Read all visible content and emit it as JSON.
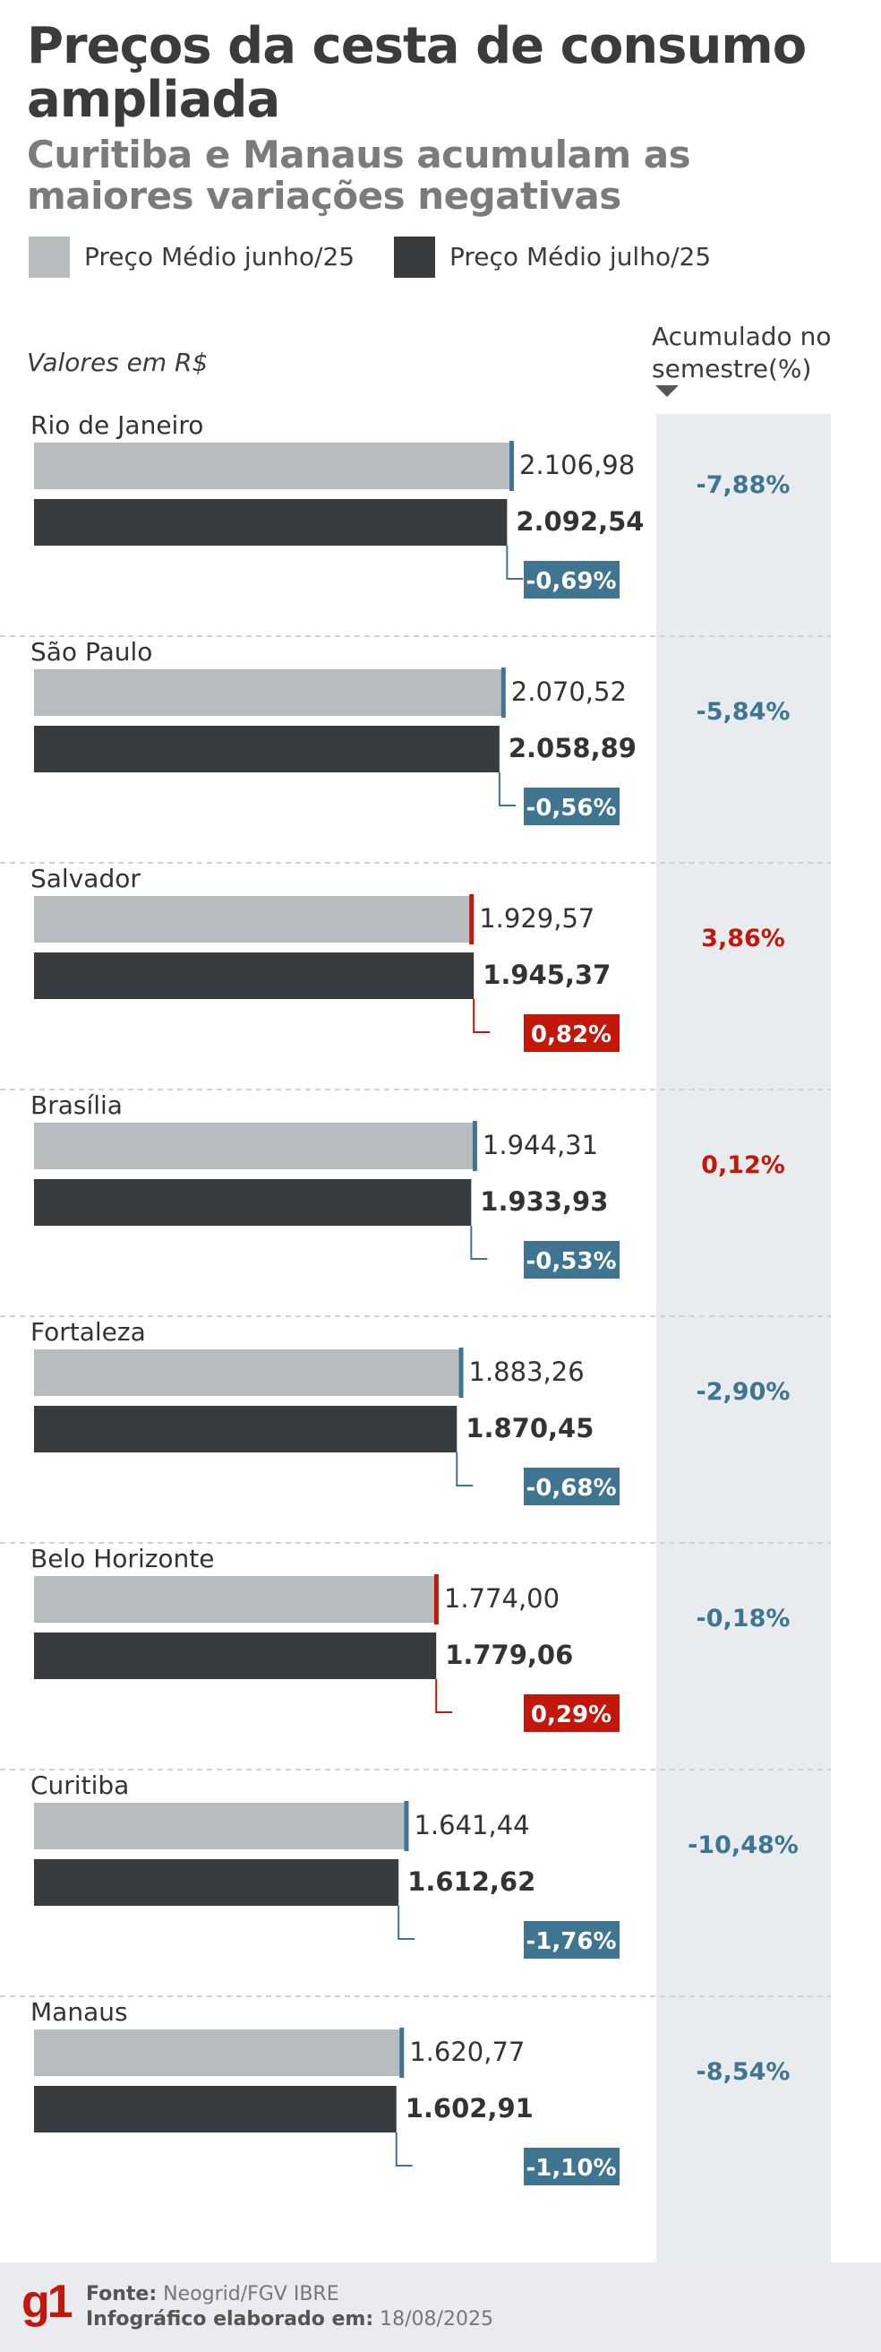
{
  "title": "Preços da cesta de consumo ampliada",
  "subtitle": "Curitiba e Manaus acumulam as maiores variações negativas",
  "legend": {
    "june": "Preço Médio junho/25",
    "july": "Preço Médio julho/25"
  },
  "unit_label": "Valores em R$",
  "accum_header": "Acumulado no semestre(%)",
  "colors": {
    "june": "#b7bcbf",
    "july": "#393c3e",
    "negative": "#3f7591",
    "positive": "#c4170c",
    "accum_bg": "#e9ecef"
  },
  "chart_data": {
    "type": "bar",
    "categories": [
      "Rio de Janeiro",
      "São Paulo",
      "Salvador",
      "Brasília",
      "Fortaleza",
      "Belo Horizonte",
      "Curitiba",
      "Manaus"
    ],
    "series": [
      {
        "name": "Preço Médio junho/25",
        "values": [
          2106.98,
          2070.52,
          1929.57,
          1944.31,
          1883.26,
          1774.0,
          1641.44,
          1620.77
        ],
        "labels": [
          "2.106,98",
          "2.070,52",
          "1.929,57",
          "1.944,31",
          "1.883,26",
          "1.774,00",
          "1.641,44",
          "1.620,77"
        ]
      },
      {
        "name": "Preço Médio julho/25",
        "values": [
          2092.54,
          2058.89,
          1945.37,
          1933.93,
          1870.45,
          1779.06,
          1612.62,
          1602.91
        ],
        "labels": [
          "2.092,54",
          "2.058,89",
          "1.945,37",
          "1.933,93",
          "1.870,45",
          "1.779,06",
          "1.612,62",
          "1.602,91"
        ]
      }
    ],
    "monthly_change": {
      "values": [
        -0.69,
        -0.56,
        0.82,
        -0.53,
        -0.68,
        0.29,
        -1.76,
        -1.1
      ],
      "labels": [
        "-0,69%",
        "-0,56%",
        "0,82%",
        "-0,53%",
        "-0,68%",
        "0,29%",
        "-1,76%",
        "-1,10%"
      ]
    },
    "accumulated_semester": {
      "values": [
        -7.88,
        -5.84,
        3.86,
        0.12,
        -2.9,
        -0.18,
        -10.48,
        -8.54
      ],
      "labels": [
        "-7,88%",
        "-5,84%",
        "3,86%",
        "0,12%",
        "-2,90%",
        "-0,18%",
        "-10,48%",
        "-8,54%"
      ]
    },
    "xlim": [
      0,
      2106.98
    ]
  },
  "footer": {
    "logo": "g1",
    "source_label": "Fonte:",
    "source": "Neogrid/FGV IBRE",
    "made_label": "Infográfico elaborado em:",
    "made_date": "18/08/2025"
  }
}
